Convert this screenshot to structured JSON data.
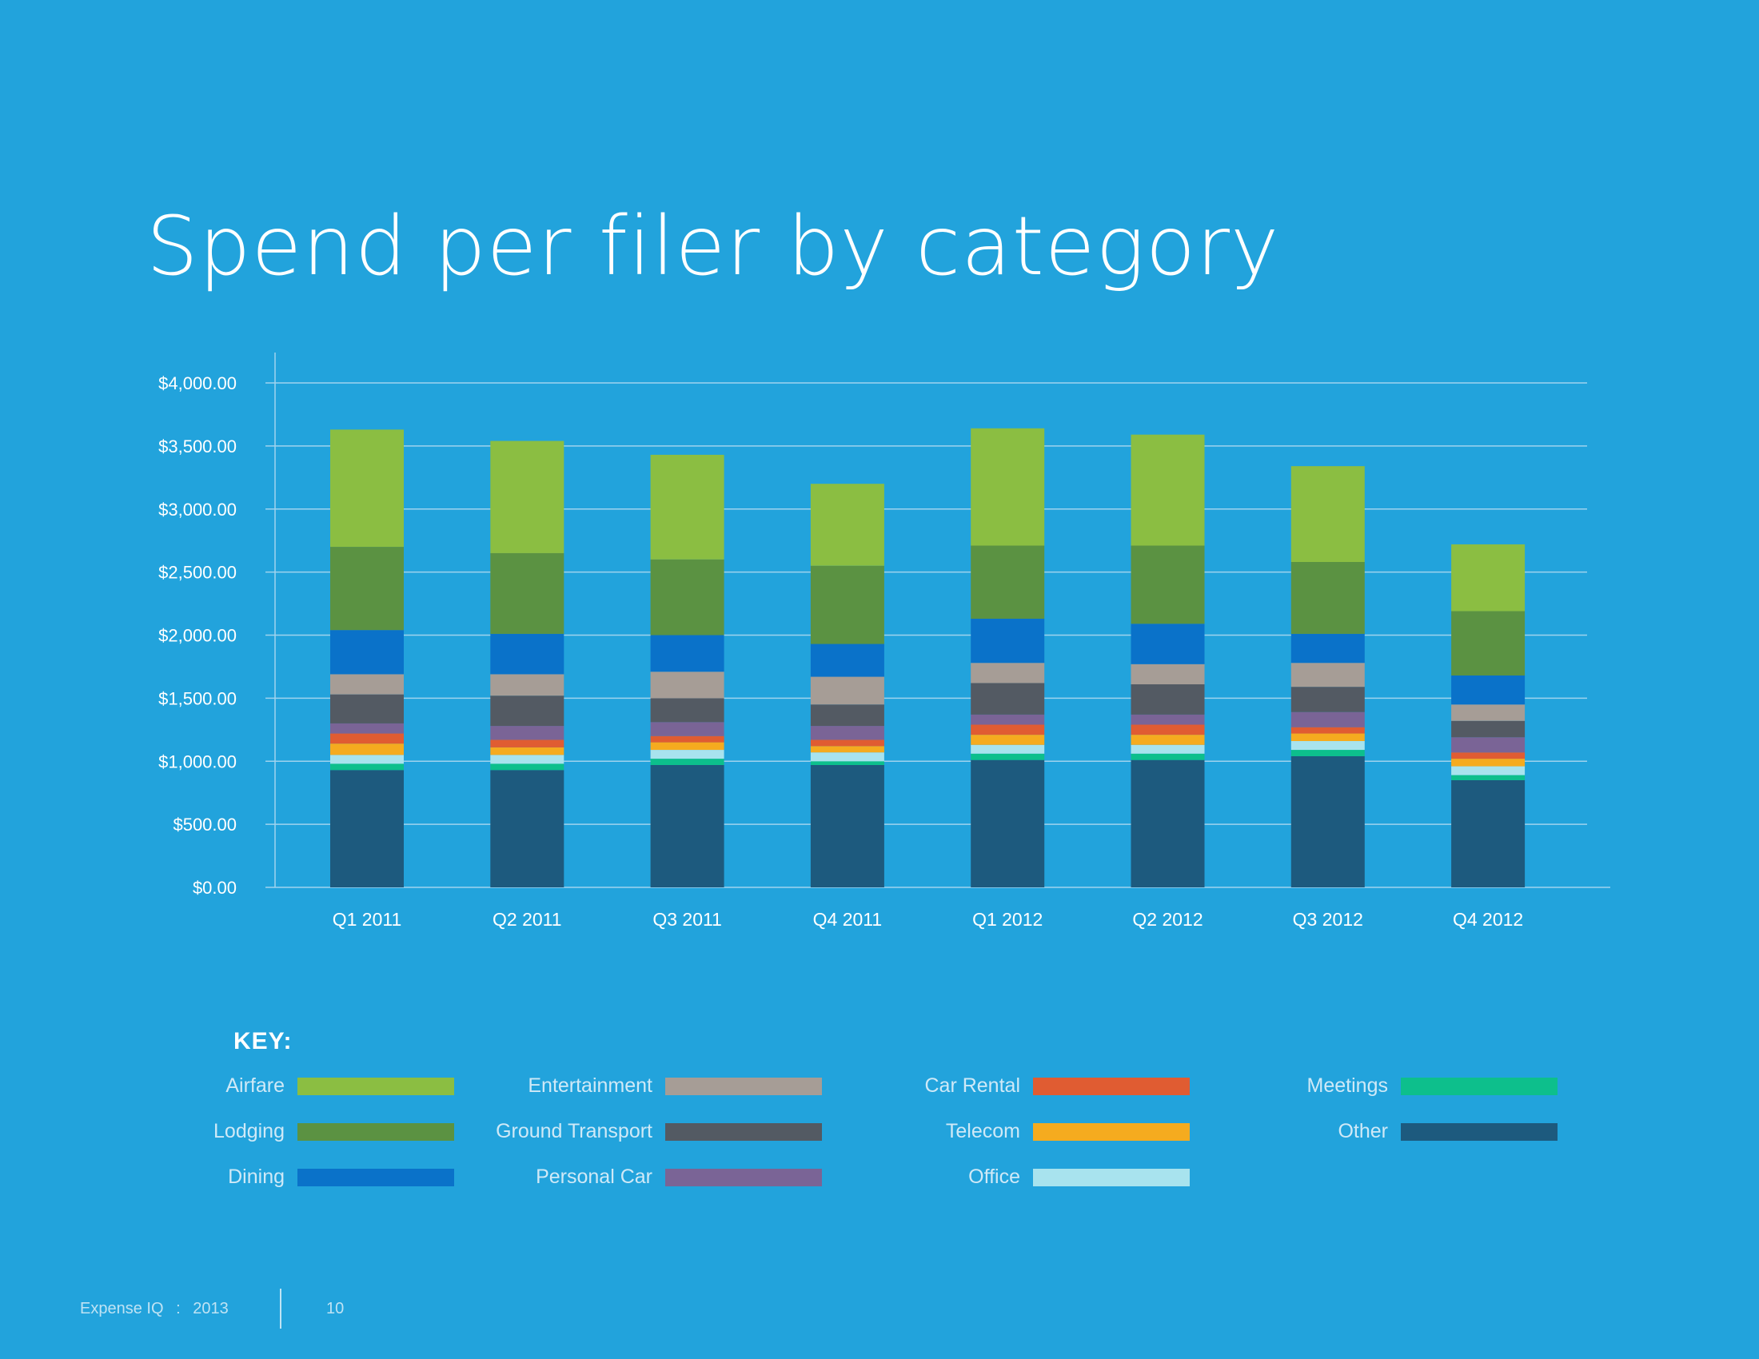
{
  "page_title": "Spend per filer by category",
  "key_title": "KEY:",
  "footer": {
    "brand": "Expense IQ",
    "sep": ":",
    "year": "2013",
    "page": "10"
  },
  "chart_data": {
    "type": "bar",
    "stacked": true,
    "title": "Spend per filer by category",
    "categories": [
      "Q1 2011",
      "Q2 2011",
      "Q3 2011",
      "Q4 2011",
      "Q1 2012",
      "Q2 2012",
      "Q3 2012",
      "Q4 2012"
    ],
    "y_ticks": [
      "$0.00",
      "$500.00",
      "$1,000.00",
      "$1,500.00",
      "$2,000.00",
      "$2,500.00",
      "$3,000.00",
      "$3,500.00",
      "$4,000.00"
    ],
    "ylim": [
      0,
      4000
    ],
    "grid": true,
    "legend": "bottom",
    "series": [
      {
        "name": "Other",
        "color": "#1d5a7e",
        "values": [
          930,
          930,
          970,
          970,
          1010,
          1010,
          1040,
          850
        ]
      },
      {
        "name": "Meetings",
        "color": "#0dbf8c",
        "values": [
          50,
          50,
          50,
          30,
          50,
          50,
          50,
          40
        ]
      },
      {
        "name": "Office",
        "color": "#a8e3ee",
        "values": [
          70,
          70,
          70,
          70,
          70,
          70,
          70,
          70
        ]
      },
      {
        "name": "Telecom",
        "color": "#f5ab1f",
        "values": [
          90,
          60,
          60,
          50,
          80,
          80,
          60,
          60
        ]
      },
      {
        "name": "Car Rental",
        "color": "#e05c32",
        "values": [
          80,
          60,
          50,
          50,
          80,
          80,
          50,
          50
        ]
      },
      {
        "name": "Personal Car",
        "color": "#7a6496",
        "values": [
          80,
          110,
          110,
          110,
          80,
          80,
          120,
          120
        ]
      },
      {
        "name": "Ground Transport",
        "color": "#535a63",
        "values": [
          230,
          240,
          190,
          170,
          250,
          240,
          200,
          130
        ]
      },
      {
        "name": "Entertainment",
        "color": "#a69d96",
        "values": [
          160,
          170,
          210,
          220,
          160,
          160,
          190,
          130
        ]
      },
      {
        "name": "Dining",
        "color": "#0a72c9",
        "values": [
          350,
          320,
          290,
          260,
          350,
          320,
          230,
          230
        ]
      },
      {
        "name": "Lodging",
        "color": "#5b9242",
        "values": [
          660,
          640,
          600,
          620,
          580,
          620,
          570,
          510
        ]
      },
      {
        "name": "Airfare",
        "color": "#8bbe42",
        "values": [
          930,
          890,
          830,
          650,
          930,
          880,
          760,
          530
        ]
      }
    ]
  },
  "legend_layout": [
    [
      "Airfare",
      "Lodging",
      "Dining"
    ],
    [
      "Entertainment",
      "Ground Transport",
      "Personal Car"
    ],
    [
      "Car Rental",
      "Telecom",
      "Office"
    ],
    [
      "Meetings",
      "Other"
    ]
  ]
}
